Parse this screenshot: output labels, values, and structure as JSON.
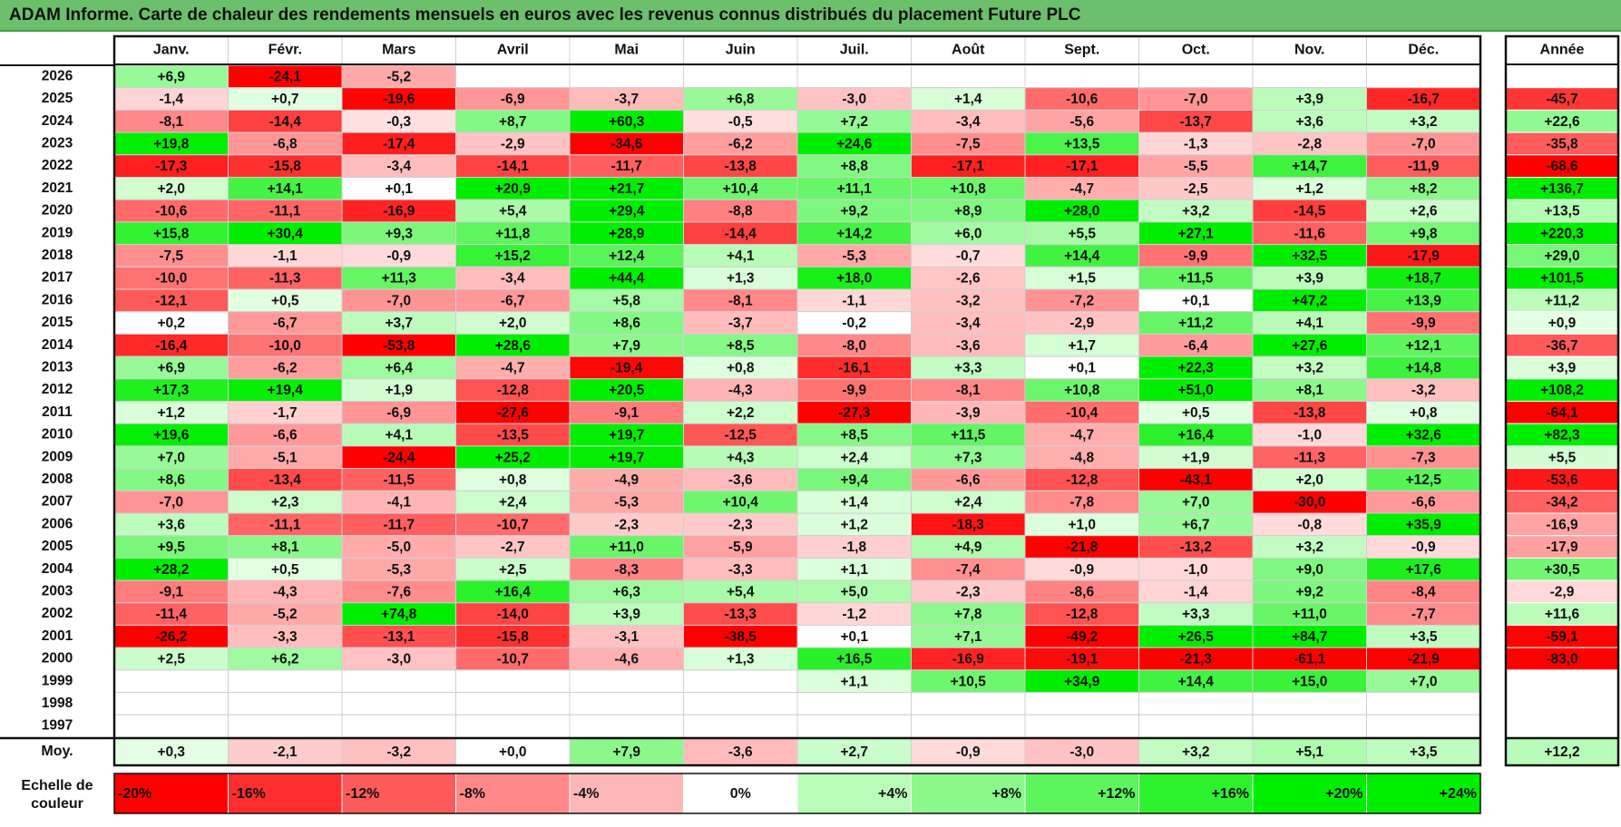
{
  "title": "ADAM Informe. Carte de chaleur des rendements mensuels en euros avec les revenus connus distribués du placement Future PLC",
  "chart_data": {
    "type": "heatmap",
    "months": [
      "Janv.",
      "Févr.",
      "Mars",
      "Avril",
      "Mai",
      "Juin",
      "Juil.",
      "Août",
      "Sept.",
      "Oct.",
      "Nov.",
      "Déc."
    ],
    "year_header": "Année",
    "rows": [
      {
        "year": "2026",
        "values": [
          "+6,9",
          "-24,1",
          "-5,2",
          "",
          "",
          "",
          "",
          "",
          "",
          "",
          "",
          ""
        ],
        "annual": ""
      },
      {
        "year": "2025",
        "values": [
          "-1,4",
          "+0,7",
          "-19,6",
          "-6,9",
          "-3,7",
          "+6,8",
          "-3,0",
          "+1,4",
          "-10,6",
          "-7,0",
          "+3,9",
          "-16,7"
        ],
        "annual": "-45,7"
      },
      {
        "year": "2024",
        "values": [
          "-8,1",
          "-14,4",
          "-0,3",
          "+8,7",
          "+60,3",
          "-0,5",
          "+7,2",
          "-3,4",
          "-5,6",
          "-13,7",
          "+3,6",
          "+3,2"
        ],
        "annual": "+22,6"
      },
      {
        "year": "2023",
        "values": [
          "+19,8",
          "-6,8",
          "-17,4",
          "-2,9",
          "-34,6",
          "-6,2",
          "+24,6",
          "-7,5",
          "+13,5",
          "-1,3",
          "-2,8",
          "-7,0"
        ],
        "annual": "-35,8"
      },
      {
        "year": "2022",
        "values": [
          "-17,3",
          "-15,8",
          "-3,4",
          "-14,1",
          "-11,7",
          "-13,8",
          "+8,8",
          "-17,1",
          "-17,1",
          "-5,5",
          "+14,7",
          "-11,9"
        ],
        "annual": "-68,6"
      },
      {
        "year": "2021",
        "values": [
          "+2,0",
          "+14,1",
          "+0,1",
          "+20,9",
          "+21,7",
          "+10,4",
          "+11,1",
          "+10,8",
          "-4,7",
          "-2,5",
          "+1,2",
          "+8,2"
        ],
        "annual": "+136,7"
      },
      {
        "year": "2020",
        "values": [
          "-10,6",
          "-11,1",
          "-16,9",
          "+5,4",
          "+29,4",
          "-8,8",
          "+9,2",
          "+8,9",
          "+28,0",
          "+3,2",
          "-14,5",
          "+2,6"
        ],
        "annual": "+13,5"
      },
      {
        "year": "2019",
        "values": [
          "+15,8",
          "+30,4",
          "+9,3",
          "+11,8",
          "+28,9",
          "-14,4",
          "+14,2",
          "+6,0",
          "+5,5",
          "+27,1",
          "-11,6",
          "+9,8"
        ],
        "annual": "+220,3"
      },
      {
        "year": "2018",
        "values": [
          "-7,5",
          "-1,1",
          "-0,9",
          "+15,2",
          "+12,4",
          "+4,1",
          "-5,3",
          "-0,7",
          "+14,4",
          "-9,9",
          "+32,5",
          "-17,9"
        ],
        "annual": "+29,0"
      },
      {
        "year": "2017",
        "values": [
          "-10,0",
          "-11,3",
          "+11,3",
          "-3,4",
          "+44,4",
          "+1,3",
          "+18,0",
          "-2,6",
          "+1,5",
          "+11,5",
          "+3,9",
          "+18,7"
        ],
        "annual": "+101,5"
      },
      {
        "year": "2016",
        "values": [
          "-12,1",
          "+0,5",
          "-7,0",
          "-6,7",
          "+5,8",
          "-8,1",
          "-1,1",
          "-3,2",
          "-7,2",
          "+0,1",
          "+47,2",
          "+13,9"
        ],
        "annual": "+11,2"
      },
      {
        "year": "2015",
        "values": [
          "+0,2",
          "-6,7",
          "+3,7",
          "+2,0",
          "+8,6",
          "-3,7",
          "-0,2",
          "-3,4",
          "-2,9",
          "+11,2",
          "+4,1",
          "-9,9"
        ],
        "annual": "+0,9"
      },
      {
        "year": "2014",
        "values": [
          "-16,4",
          "-10,0",
          "-53,8",
          "+28,6",
          "+7,9",
          "+8,5",
          "-8,0",
          "-3,6",
          "+1,7",
          "-6,4",
          "+27,6",
          "+12,1"
        ],
        "annual": "-36,7"
      },
      {
        "year": "2013",
        "values": [
          "+6,9",
          "-6,2",
          "+6,4",
          "-4,7",
          "-19,4",
          "+0,8",
          "-16,1",
          "+3,3",
          "+0,1",
          "+22,3",
          "+3,2",
          "+14,8"
        ],
        "annual": "+3,9"
      },
      {
        "year": "2012",
        "values": [
          "+17,3",
          "+19,4",
          "+1,9",
          "-12,8",
          "+20,5",
          "-4,3",
          "-9,9",
          "-8,1",
          "+10,8",
          "+51,0",
          "+8,1",
          "-3,2"
        ],
        "annual": "+108,2"
      },
      {
        "year": "2011",
        "values": [
          "+1,2",
          "-1,7",
          "-6,9",
          "-27,6",
          "-9,1",
          "+2,2",
          "-27,3",
          "-3,9",
          "-10,4",
          "+0,5",
          "-13,8",
          "+0,8"
        ],
        "annual": "-64,1"
      },
      {
        "year": "2010",
        "values": [
          "+19,6",
          "-6,6",
          "+4,1",
          "-13,5",
          "+19,7",
          "-12,5",
          "+8,5",
          "+11,5",
          "-4,7",
          "+16,4",
          "-1,0",
          "+32,6"
        ],
        "annual": "+82,3"
      },
      {
        "year": "2009",
        "values": [
          "+7,0",
          "-5,1",
          "-24,4",
          "+25,2",
          "+19,7",
          "+4,3",
          "+2,4",
          "+7,3",
          "-4,8",
          "+1,9",
          "-11,3",
          "-7,3"
        ],
        "annual": "+5,5"
      },
      {
        "year": "2008",
        "values": [
          "+8,6",
          "-13,4",
          "-11,5",
          "+0,8",
          "-4,9",
          "-3,6",
          "+9,4",
          "-6,6",
          "-12,8",
          "-43,1",
          "+2,0",
          "+12,5"
        ],
        "annual": "-53,6"
      },
      {
        "year": "2007",
        "values": [
          "-7,0",
          "+2,3",
          "-4,1",
          "+2,4",
          "-5,3",
          "+10,4",
          "+1,4",
          "+2,4",
          "-7,8",
          "+7,0",
          "-30,0",
          "-6,6"
        ],
        "annual": "-34,2"
      },
      {
        "year": "2006",
        "values": [
          "+3,6",
          "-11,1",
          "-11,7",
          "-10,7",
          "-2,3",
          "-2,3",
          "+1,2",
          "-18,3",
          "+1,0",
          "+6,7",
          "-0,8",
          "+35,9"
        ],
        "annual": "-16,9"
      },
      {
        "year": "2005",
        "values": [
          "+9,5",
          "+8,1",
          "-5,0",
          "-2,7",
          "+11,0",
          "-5,9",
          "-1,8",
          "+4,9",
          "-21,8",
          "-13,2",
          "+3,2",
          "-0,9"
        ],
        "annual": "-17,9"
      },
      {
        "year": "2004",
        "values": [
          "+28,2",
          "+0,5",
          "-5,3",
          "+2,5",
          "-8,3",
          "-3,3",
          "+1,1",
          "-7,4",
          "-0,9",
          "-1,0",
          "+9,0",
          "+17,6"
        ],
        "annual": "+30,5"
      },
      {
        "year": "2003",
        "values": [
          "-9,1",
          "-4,3",
          "-7,6",
          "+16,4",
          "+6,3",
          "+5,4",
          "+5,0",
          "-2,3",
          "-8,6",
          "-1,4",
          "+9,2",
          "-8,4"
        ],
        "annual": "-2,9"
      },
      {
        "year": "2002",
        "values": [
          "-11,4",
          "-5,2",
          "+74,8",
          "-14,0",
          "+3,9",
          "-13,3",
          "-1,2",
          "+7,8",
          "-12,8",
          "+3,3",
          "+11,0",
          "-7,7"
        ],
        "annual": "+11,6"
      },
      {
        "year": "2001",
        "values": [
          "-26,2",
          "-3,3",
          "-13,1",
          "-15,8",
          "-3,1",
          "-38,5",
          "+0,1",
          "+7,1",
          "-49,2",
          "+26,5",
          "+84,7",
          "+3,5"
        ],
        "annual": "-59,1"
      },
      {
        "year": "2000",
        "values": [
          "+2,5",
          "+6,2",
          "-3,0",
          "-10,7",
          "-4,6",
          "+1,3",
          "+16,5",
          "-16,9",
          "-19,1",
          "-21,3",
          "-61,1",
          "-21,9"
        ],
        "annual": "-83,0"
      },
      {
        "year": "1999",
        "values": [
          "",
          "",
          "",
          "",
          "",
          "",
          "+1,1",
          "+10,5",
          "+34,9",
          "+14,4",
          "+15,0",
          "+7,0"
        ],
        "annual": ""
      },
      {
        "year": "1998",
        "values": [
          "",
          "",
          "",
          "",
          "",
          "",
          "",
          "",
          "",
          "",
          "",
          ""
        ],
        "annual": ""
      },
      {
        "year": "1997",
        "values": [
          "",
          "",
          "",
          "",
          "",
          "",
          "",
          "",
          "",
          "",
          "",
          ""
        ],
        "annual": ""
      }
    ],
    "average": {
      "label": "Moy.",
      "values": [
        "+0,3",
        "-2,1",
        "-3,2",
        "+0,0",
        "+7,9",
        "-3,6",
        "+2,7",
        "-0,9",
        "-3,0",
        "+3,2",
        "+5,1",
        "+3,5"
      ],
      "annual": "+12,2"
    },
    "scale": {
      "label_line1": "Echelle de",
      "label_line2": "couleur",
      "steps": [
        {
          "label": "-20%",
          "value": -20
        },
        {
          "label": "-16%",
          "value": -16
        },
        {
          "label": "-12%",
          "value": -12
        },
        {
          "label": "-8%",
          "value": -8
        },
        {
          "label": "-4%",
          "value": -4
        },
        {
          "label": "0%",
          "value": 0
        },
        {
          "label": "+4%",
          "value": 4
        },
        {
          "label": "+8%",
          "value": 8
        },
        {
          "label": "+12%",
          "value": 12
        },
        {
          "label": "+16%",
          "value": 16
        },
        {
          "label": "+20%",
          "value": 20
        },
        {
          "label": "+24%",
          "value": 24
        }
      ]
    },
    "colors": {
      "negative_max": "#ff0000",
      "positive_max": "#00ee00",
      "neutral": "#ffffff",
      "title_bar": "#6cbf6c"
    }
  }
}
